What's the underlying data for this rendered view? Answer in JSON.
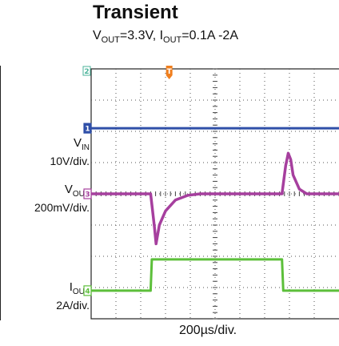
{
  "header": {
    "title": "Transient",
    "subtitle": {
      "v_label": "V",
      "v_sub": "OUT",
      "v_value": "=3.3V, ",
      "i_label": "I",
      "i_sub": "OUT",
      "i_value": "=0.1A -2A"
    }
  },
  "channels": {
    "vin": {
      "name": "V",
      "sub": "IN",
      "scale": "10V/div.",
      "marker": "1",
      "color": "#2f4fa8"
    },
    "vout": {
      "name": "V",
      "sub": "OUT",
      "scale": "200mV/div.",
      "marker": "3",
      "color": "#a63f9e"
    },
    "iout": {
      "name": "I",
      "sub": "OUT",
      "scale": "2A/div.",
      "marker": "4",
      "color": "#5cbf3a"
    }
  },
  "top_markers": {
    "ch2": "2",
    "trigger": "T"
  },
  "xlabel": "200µs/div.",
  "chart_data": {
    "type": "line",
    "x_unit": "div",
    "xlim": [
      0,
      10
    ],
    "ylim": [
      -4,
      4
    ],
    "grid": true,
    "xlabel": "200µs/div.",
    "series": [
      {
        "name": "VIN",
        "x": [
          0,
          10
        ],
        "y": [
          2.1,
          2.1
        ]
      },
      {
        "name": "VOUT",
        "x": [
          0,
          2.4,
          2.55,
          2.62,
          2.75,
          3.0,
          3.4,
          3.9,
          4.4,
          7.7,
          7.85,
          7.95,
          8.05,
          8.15,
          8.4,
          8.7,
          10
        ],
        "y": [
          0.0,
          0.0,
          -1.05,
          -1.6,
          -1.0,
          -0.55,
          -0.2,
          -0.05,
          0.0,
          0.0,
          0.9,
          1.3,
          1.1,
          0.6,
          0.15,
          0.0,
          0.0
        ]
      },
      {
        "name": "IOUT",
        "x": [
          0,
          2.4,
          2.45,
          7.7,
          7.75,
          10
        ],
        "y": [
          -3.1,
          -3.1,
          -2.1,
          -2.1,
          -3.1,
          -3.1
        ]
      }
    ]
  }
}
